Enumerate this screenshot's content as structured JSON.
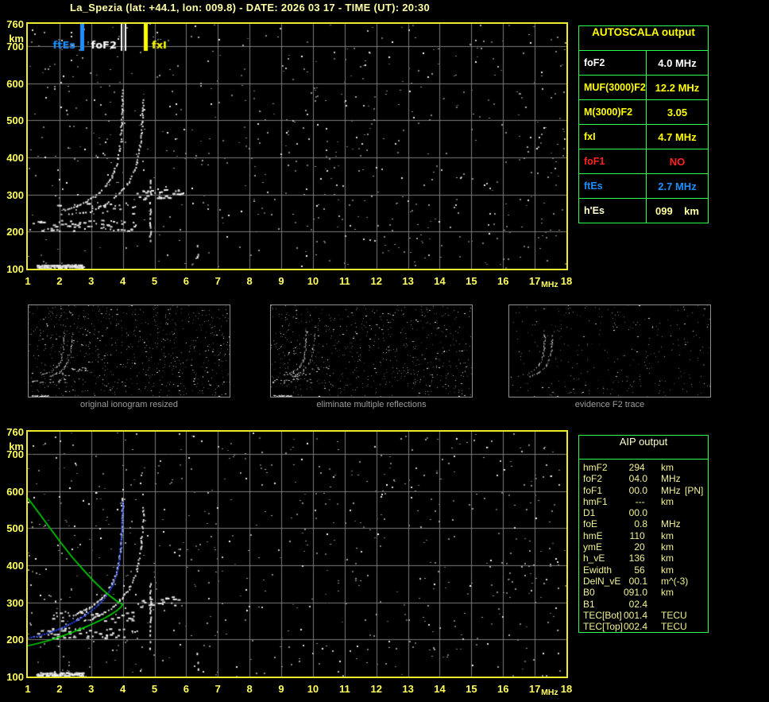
{
  "title": "La_Spezia (lat: +44.1, lon: 009.8) - DATE: 2026 03 17 - TIME (UT): 20:30",
  "colors": {
    "background": "#000000",
    "plot_border": "#ecec2e",
    "grid": "#7b7b7b",
    "axis_text": "#ffff5e",
    "table_border": "#2dff50",
    "title_text": "#ffffa6",
    "caption_text": "#9b9b9b"
  },
  "autoscala": {
    "header": "AUTOSCALA output",
    "rows": [
      {
        "label": "foF2",
        "value": "4.0 MHz",
        "color": "#ffffff"
      },
      {
        "label": "MUF(3000)F2",
        "value": "12.2 MHz",
        "color": "#ffff00"
      },
      {
        "label": "M(3000)F2",
        "value": "3.05",
        "color": "#ffff00"
      },
      {
        "label": "fxI",
        "value": "4.7 MHz",
        "color": "#ffff00"
      },
      {
        "label": "foF1",
        "value": "NO",
        "color": "#ff2222"
      },
      {
        "label": "ftEs",
        "value": "2.7 MHz",
        "color": "#1e8fff"
      },
      {
        "label": "h'Es",
        "value": "099    km",
        "color": "#ffffd2",
        "value_color": "#ffffa0"
      }
    ]
  },
  "aip": {
    "header": "AIP output",
    "rows": [
      {
        "label": "hmF2",
        "value": "294 ",
        "unit": "km",
        "note": ""
      },
      {
        "label": "foF2",
        "value": "04.0",
        "unit": "MHz",
        "note": ""
      },
      {
        "label": "foF1",
        "value": "00.0",
        "unit": "MHz",
        "note": "[PN]"
      },
      {
        "label": "hmF1",
        "value": "--- ",
        "unit": "km",
        "note": ""
      },
      {
        "label": "D1",
        "value": "00.0",
        "unit": "",
        "note": ""
      },
      {
        "label": "foE",
        "value": "0.8",
        "unit": "MHz",
        "note": ""
      },
      {
        "label": "hmE",
        "value": "110 ",
        "unit": "km",
        "note": ""
      },
      {
        "label": "ymE",
        "value": "20 ",
        "unit": "km",
        "note": ""
      },
      {
        "label": "h_vE",
        "value": "136 ",
        "unit": "km",
        "note": ""
      },
      {
        "label": "Ewidth",
        "value": "56 ",
        "unit": "km",
        "note": ""
      },
      {
        "label": "DelN_vE",
        "value": "00.1",
        "unit": "m^(-3)",
        "note": ""
      },
      {
        "label": "B0",
        "value": "091.0",
        "unit": "km",
        "note": ""
      },
      {
        "label": "B1",
        "value": "02.4",
        "unit": "",
        "note": ""
      },
      {
        "label": "TEC[Bot]",
        "value": "001.4",
        "unit": "TECU",
        "note": ""
      },
      {
        "label": "TEC[Top]",
        "value": "002.4",
        "unit": "TECU",
        "note": ""
      }
    ]
  },
  "thumbnails": [
    {
      "caption": "original ionogram resized",
      "noise_gray": 620,
      "noise_white": 130,
      "show_es": true,
      "seed": 11
    },
    {
      "caption": "eliminate multiple reflections",
      "noise_gray": 560,
      "noise_white": 105,
      "show_es": true,
      "seed": 22
    },
    {
      "caption": "evidence F2 trace",
      "noise_gray": 270,
      "noise_white": 40,
      "show_es": false,
      "seed": 33
    }
  ],
  "chart_data": [
    {
      "type": "scatter",
      "name": "ionogram with autoscaled characteristic frequencies",
      "xlabel": "MHz",
      "ylabel": "km",
      "xlim": [
        1,
        18
      ],
      "ylim": [
        100,
        760
      ],
      "x_ticks": [
        1,
        2,
        3,
        4,
        5,
        6,
        7,
        8,
        9,
        10,
        11,
        12,
        13,
        14,
        15,
        16,
        17,
        18
      ],
      "y_ticks": [
        760,
        700,
        600,
        500,
        400,
        300,
        200,
        100
      ],
      "grid": true,
      "noise": {
        "seed": 7,
        "gray": 540,
        "white": 125
      },
      "markers": [
        {
          "name": "ftEs",
          "freq": 2.7,
          "color": "#1e8fff",
          "style": "solid",
          "label_side": "left"
        },
        {
          "name": "foF2",
          "freq": 4.0,
          "color": "#ffffff",
          "style": "double",
          "label_side": "left"
        },
        {
          "name": "fxI",
          "freq": 4.7,
          "color": "#ffff00",
          "style": "solid",
          "label_side": "right"
        }
      ],
      "o_trace": [
        [
          2.1,
          260
        ],
        [
          2.35,
          266
        ],
        [
          2.6,
          274
        ],
        [
          2.85,
          284
        ],
        [
          3.1,
          297
        ],
        [
          3.3,
          312
        ],
        [
          3.5,
          331
        ],
        [
          3.65,
          352
        ],
        [
          3.78,
          380
        ],
        [
          3.86,
          412
        ],
        [
          3.91,
          448
        ],
        [
          3.945,
          492
        ],
        [
          3.965,
          532
        ],
        [
          3.975,
          568
        ],
        [
          3.98,
          588
        ]
      ],
      "x_trace": [
        [
          2.75,
          251
        ],
        [
          3.0,
          258
        ],
        [
          3.25,
          267
        ],
        [
          3.5,
          279
        ],
        [
          3.7,
          292
        ],
        [
          3.9,
          308
        ],
        [
          4.1,
          328
        ],
        [
          4.27,
          352
        ],
        [
          4.4,
          381
        ],
        [
          4.49,
          414
        ],
        [
          4.55,
          450
        ],
        [
          4.595,
          495
        ],
        [
          4.625,
          535
        ],
        [
          4.64,
          565
        ]
      ],
      "bands": [
        {
          "name": "Es-multiple-band",
          "f": [
            1.2,
            4.4
          ],
          "h": [
            203,
            233
          ],
          "density": 0.32
        },
        {
          "name": "F-multiple-band",
          "f": [
            1.7,
            4.45
          ],
          "h": [
            248,
            280
          ],
          "density": 0.18
        },
        {
          "name": "second-hop-echoes",
          "f": [
            4.45,
            5.85
          ],
          "h": [
            288,
            316
          ],
          "density": 0.34
        },
        {
          "name": "Es-bottom-band",
          "f": [
            1.25,
            2.72
          ],
          "h": [
            103,
            112
          ],
          "density": 0.88
        }
      ],
      "stripes": [
        {
          "name": "interference-line-1",
          "f": 4.85,
          "h": [
            178,
            352
          ]
        },
        {
          "name": "interference-line-2",
          "f": 6.35,
          "h": [
            122,
            168
          ]
        }
      ]
    },
    {
      "type": "scatter",
      "name": "ionogram with AIP electron density profile and fitted trace",
      "xlabel": "MHz",
      "ylabel": "km",
      "xlim": [
        1,
        18
      ],
      "ylim": [
        100,
        760
      ],
      "x_ticks": [
        1,
        2,
        3,
        4,
        5,
        6,
        7,
        8,
        9,
        10,
        11,
        12,
        13,
        14,
        15,
        16,
        17,
        18
      ],
      "y_ticks": [
        760,
        700,
        600,
        500,
        400,
        300,
        200,
        100
      ],
      "grid": true,
      "noise": {
        "seed": 13,
        "gray": 540,
        "white": 125
      },
      "profile_color": "#00d000",
      "profile_curve": [
        [
          1.0,
          581
        ],
        [
          1.35,
          541
        ],
        [
          1.7,
          500
        ],
        [
          2.05,
          460
        ],
        [
          2.4,
          422
        ],
        [
          2.75,
          388
        ],
        [
          3.05,
          360
        ],
        [
          3.35,
          335
        ],
        [
          3.6,
          317
        ],
        [
          3.8,
          304
        ],
        [
          3.93,
          297
        ],
        [
          3.99,
          294
        ],
        [
          3.93,
          286
        ],
        [
          3.8,
          277
        ],
        [
          3.6,
          266
        ],
        [
          3.35,
          254
        ],
        [
          3.05,
          242
        ],
        [
          2.75,
          231
        ],
        [
          2.4,
          219
        ],
        [
          2.05,
          208
        ],
        [
          1.7,
          198
        ],
        [
          1.35,
          190
        ],
        [
          1.0,
          183
        ]
      ],
      "fitted_color": "#2443f0",
      "fitted_trace": [
        [
          1.0,
          206
        ],
        [
          1.25,
          210
        ],
        [
          1.5,
          216
        ],
        [
          1.75,
          223
        ],
        [
          2.0,
          231
        ],
        [
          2.25,
          241
        ],
        [
          2.5,
          252
        ],
        [
          2.75,
          265
        ],
        [
          2.95,
          277
        ],
        [
          3.15,
          291
        ],
        [
          3.35,
          308
        ],
        [
          3.5,
          325
        ],
        [
          3.65,
          347
        ],
        [
          3.77,
          374
        ],
        [
          3.85,
          404
        ],
        [
          3.9,
          436
        ],
        [
          3.93,
          470
        ],
        [
          3.955,
          508
        ],
        [
          3.97,
          545
        ],
        [
          3.98,
          578
        ]
      ]
    }
  ]
}
